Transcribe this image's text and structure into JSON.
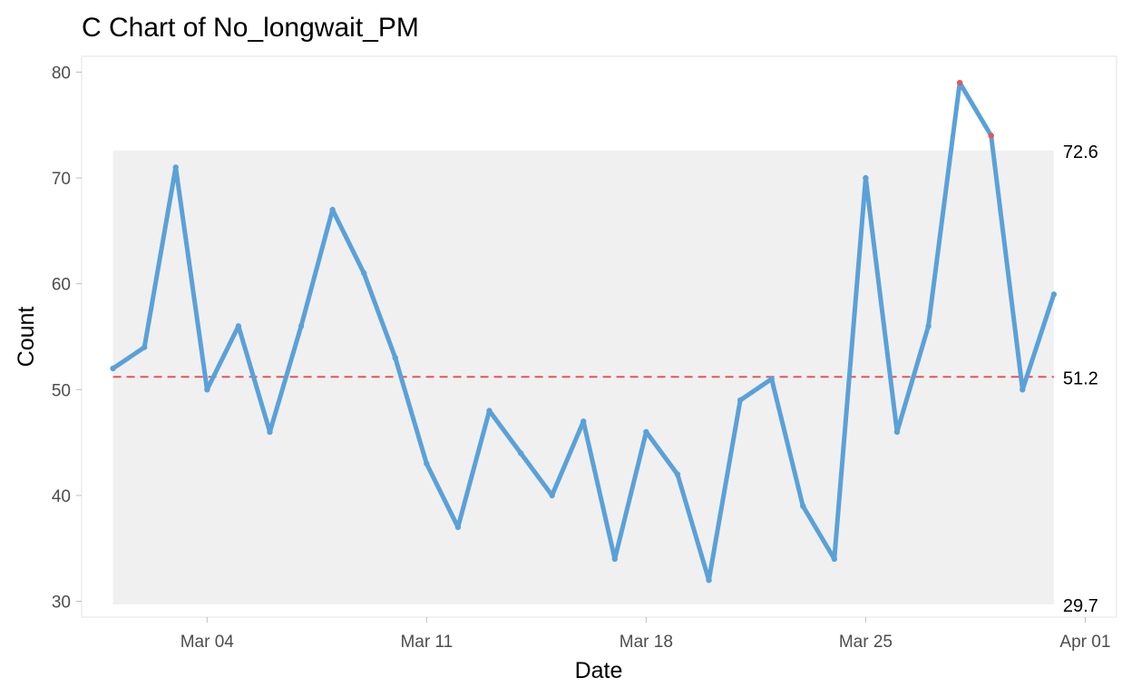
{
  "chart_data": {
    "type": "line",
    "title": "C Chart of No_longwait_PM",
    "xlabel": "Date",
    "ylabel": "Count",
    "ylim": [
      28.5,
      81.5
    ],
    "xlim": [
      "2018-02-28",
      "2018-04-02"
    ],
    "y_ticks": [
      30,
      40,
      50,
      60,
      70,
      80
    ],
    "x_ticks": [
      {
        "date": "2018-03-04",
        "label": "Mar 04"
      },
      {
        "date": "2018-03-11",
        "label": "Mar 11"
      },
      {
        "date": "2018-03-18",
        "label": "Mar 18"
      },
      {
        "date": "2018-03-25",
        "label": "Mar 25"
      },
      {
        "date": "2018-04-01",
        "label": "Apr 01"
      }
    ],
    "grid": false,
    "center_line": {
      "value": 51.2,
      "label": "51.2",
      "color": "#e15759",
      "style": "dashed"
    },
    "upper_limit": {
      "value": 72.6,
      "label": "72.6"
    },
    "lower_limit": {
      "value": 29.7,
      "label": "29.7"
    },
    "limit_band_color": "#f0f0f0",
    "series": [
      {
        "color": "#5aa1d8",
        "points": [
          {
            "x": "2018-03-01",
            "y": 52
          },
          {
            "x": "2018-03-02",
            "y": 54
          },
          {
            "x": "2018-03-03",
            "y": 71
          },
          {
            "x": "2018-03-04",
            "y": 50
          },
          {
            "x": "2018-03-05",
            "y": 56
          },
          {
            "x": "2018-03-06",
            "y": 46
          },
          {
            "x": "2018-03-07",
            "y": 56
          },
          {
            "x": "2018-03-08",
            "y": 67
          },
          {
            "x": "2018-03-09",
            "y": 61
          },
          {
            "x": "2018-03-10",
            "y": 53
          },
          {
            "x": "2018-03-11",
            "y": 43
          },
          {
            "x": "2018-03-12",
            "y": 37
          },
          {
            "x": "2018-03-13",
            "y": 48
          },
          {
            "x": "2018-03-14",
            "y": 44
          },
          {
            "x": "2018-03-15",
            "y": 40
          },
          {
            "x": "2018-03-16",
            "y": 47
          },
          {
            "x": "2018-03-17",
            "y": 34
          },
          {
            "x": "2018-03-18",
            "y": 46
          },
          {
            "x": "2018-03-19",
            "y": 42
          },
          {
            "x": "2018-03-20",
            "y": 32
          },
          {
            "x": "2018-03-21",
            "y": 49
          },
          {
            "x": "2018-03-22",
            "y": 51
          },
          {
            "x": "2018-03-23",
            "y": 39
          },
          {
            "x": "2018-03-24",
            "y": 34
          },
          {
            "x": "2018-03-25",
            "y": 70
          },
          {
            "x": "2018-03-26",
            "y": 46
          },
          {
            "x": "2018-03-27",
            "y": 56
          },
          {
            "x": "2018-03-28",
            "y": 79,
            "out_of_control": true
          },
          {
            "x": "2018-03-29",
            "y": 74,
            "out_of_control": true
          },
          {
            "x": "2018-03-30",
            "y": 50
          },
          {
            "x": "2018-03-31",
            "y": 59
          }
        ]
      }
    ],
    "out_of_control_color": "#e15759"
  }
}
